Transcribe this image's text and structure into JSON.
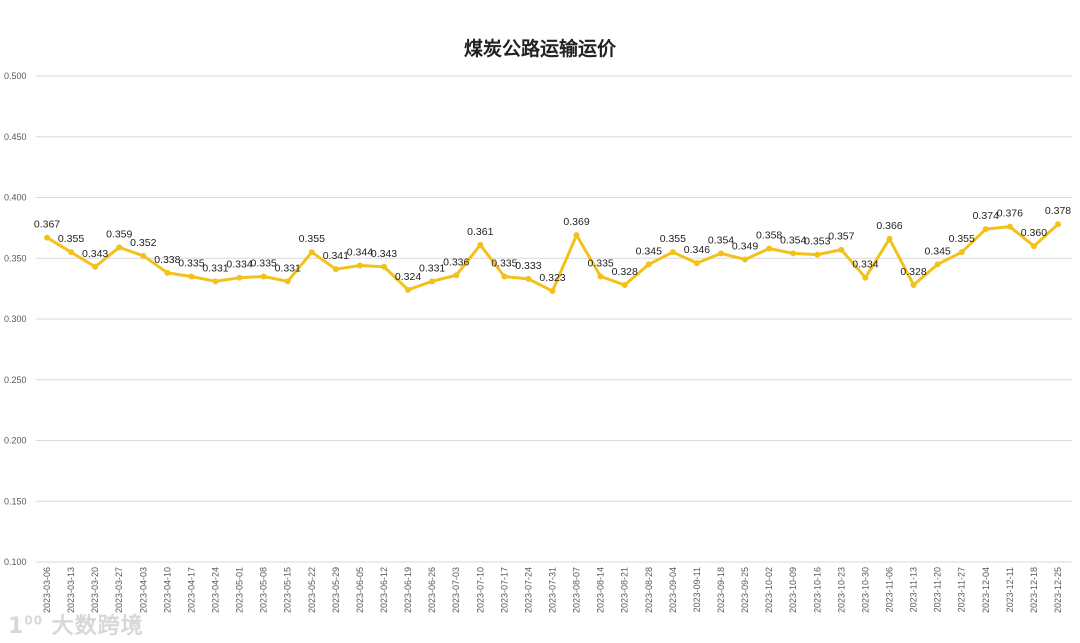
{
  "chart_data": {
    "type": "line",
    "title": "煤炭公路运输运价",
    "xlabel": "",
    "ylabel": "",
    "ylim": [
      0.1,
      0.5
    ],
    "yticks": [
      "0.100",
      "0.150",
      "0.200",
      "0.250",
      "0.300",
      "0.350",
      "0.400",
      "0.450",
      "0.500"
    ],
    "grid": true,
    "legend": "none",
    "line_color": "#F2C21B",
    "categories": [
      "2023-03-06",
      "2023-03-13",
      "2023-03-20",
      "2023-03-27",
      "2023-04-03",
      "2023-04-10",
      "2023-04-17",
      "2023-04-24",
      "2023-05-01",
      "2023-05-08",
      "2023-05-15",
      "2023-05-22",
      "2023-05-29",
      "2023-06-05",
      "2023-06-12",
      "2023-06-19",
      "2023-06-26",
      "2023-07-03",
      "2023-07-10",
      "2023-07-17",
      "2023-07-24",
      "2023-07-31",
      "2023-08-07",
      "2023-08-14",
      "2023-08-21",
      "2023-08-28",
      "2023-09-04",
      "2023-09-11",
      "2023-09-18",
      "2023-09-25",
      "2023-10-02",
      "2023-10-09",
      "2023-10-16",
      "2023-10-23",
      "2023-10-30",
      "2023-11-06",
      "2023-11-13",
      "2023-11-20",
      "2023-11-27",
      "2023-12-04",
      "2023-12-11",
      "2023-12-18",
      "2023-12-25"
    ],
    "values": [
      0.367,
      0.355,
      0.343,
      0.359,
      0.352,
      0.338,
      0.335,
      0.331,
      0.334,
      0.335,
      0.331,
      0.355,
      0.341,
      0.344,
      0.343,
      0.324,
      0.331,
      0.336,
      0.361,
      0.335,
      0.333,
      0.323,
      0.369,
      0.335,
      0.328,
      0.345,
      0.355,
      0.346,
      0.354,
      0.349,
      0.358,
      0.354,
      0.353,
      0.357,
      0.334,
      0.366,
      0.328,
      0.345,
      0.355,
      0.374,
      0.376,
      0.36,
      0.378
    ]
  },
  "watermark": "大数跨境"
}
